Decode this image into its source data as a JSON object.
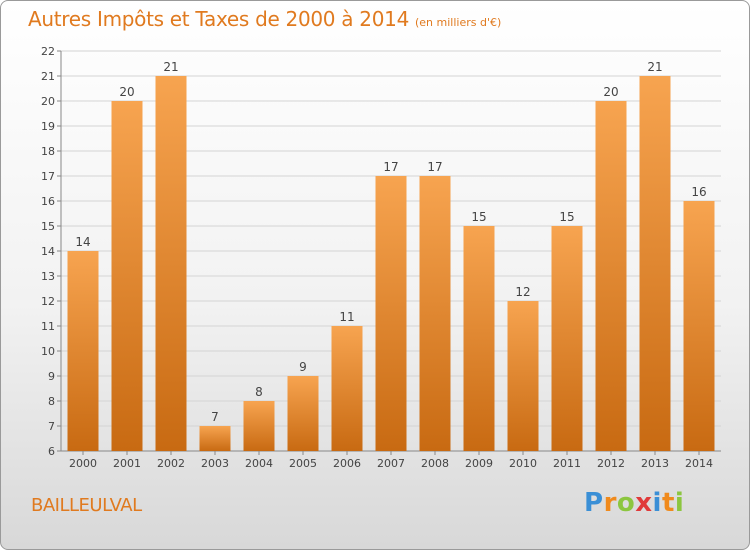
{
  "header": {
    "title": "Autres Impôts et Taxes de 2000 à 2014",
    "unit": "(en milliers d'€)"
  },
  "footer": {
    "city": "BAILLEULVAL",
    "brand_letters": [
      "P",
      "r",
      "o",
      "x",
      "i",
      "t",
      "i"
    ],
    "brand_colors": [
      "#3a8fd6",
      "#f08a1c",
      "#8cc63f",
      "#e03a3a",
      "#3a8fd6",
      "#f08a1c",
      "#8cc63f"
    ]
  },
  "colors": {
    "accent": "#e07a1f",
    "bar_light": "#f7a450",
    "bar_dark": "#c86a12"
  },
  "chart_data": {
    "type": "bar",
    "title": "Autres Impôts et Taxes de 2000 à 2014",
    "subtitle": "(en milliers d'€)",
    "xlabel": "",
    "ylabel": "",
    "categories": [
      "2000",
      "2001",
      "2002",
      "2003",
      "2004",
      "2005",
      "2006",
      "2007",
      "2008",
      "2009",
      "2010",
      "2011",
      "2012",
      "2013",
      "2014"
    ],
    "values": [
      14,
      20,
      21,
      7,
      8,
      9,
      11,
      17,
      17,
      15,
      12,
      15,
      20,
      21,
      16
    ],
    "ylim": [
      6,
      22
    ],
    "yticks": [
      6,
      7,
      8,
      9,
      10,
      11,
      12,
      13,
      14,
      15,
      16,
      17,
      18,
      19,
      20,
      21,
      22
    ],
    "grid": true,
    "legend": "none"
  }
}
